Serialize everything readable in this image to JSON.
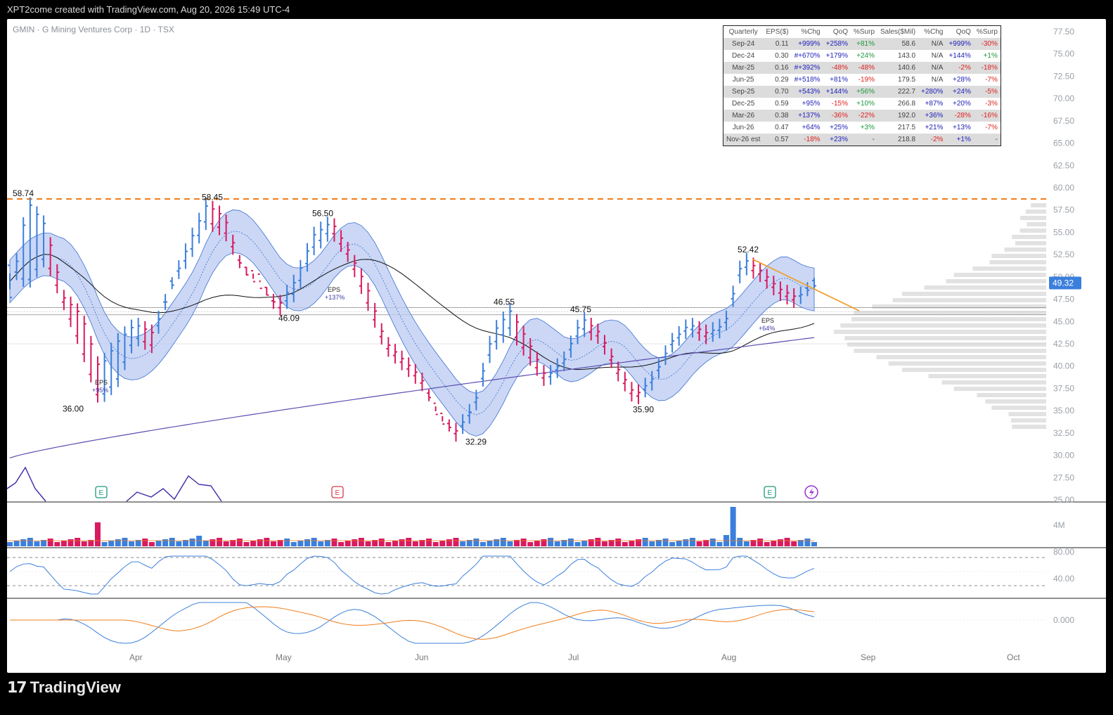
{
  "header": {
    "attribution": "XPT2come created with TradingView.com, Aug 20, 2026 15:49 UTC-4"
  },
  "symbol": {
    "line": "GMIN · G Mining Ventures Corp · 1D · TSX"
  },
  "footer": {
    "brand": "TradingView"
  },
  "eps_table": {
    "headers": [
      "Quarterly",
      "EPS($)",
      "%Chg",
      "QoQ",
      "%Surp",
      "Sales($Mil)",
      "%Chg",
      "QoQ",
      "%Surp"
    ],
    "rows": [
      [
        "Sep-24",
        "0.11",
        "+999%",
        "+258%",
        "+81%",
        "58.6",
        "N/A",
        "+999%",
        "-30%"
      ],
      [
        "Dec-24",
        "0.30",
        "#+670%",
        "+179%",
        "+24%",
        "143.0",
        "N/A",
        "+144%",
        "+1%"
      ],
      [
        "Mar-25",
        "0.16",
        "#+392%",
        "-48%",
        "-48%",
        "140.6",
        "N/A",
        "-2%",
        "-18%"
      ],
      [
        "Jun-25",
        "0.29",
        "#+518%",
        "+81%",
        "-19%",
        "179.5",
        "N/A",
        "+28%",
        "-7%"
      ],
      [
        "Sep-25",
        "0.70",
        "+543%",
        "+144%",
        "+56%",
        "222.7",
        "+280%",
        "+24%",
        "-5%"
      ],
      [
        "Dec-25",
        "0.59",
        "+95%",
        "-15%",
        "+10%",
        "266.8",
        "+87%",
        "+20%",
        "-3%"
      ],
      [
        "Mar-26",
        "0.38",
        "+137%",
        "-36%",
        "-22%",
        "192.0",
        "+36%",
        "-28%",
        "-16%"
      ],
      [
        "Jun-26",
        "0.47",
        "+64%",
        "+25%",
        "+3%",
        "217.5",
        "+21%",
        "+13%",
        "-7%"
      ],
      [
        "Nov-26 est",
        "0.57",
        "-18%",
        "+23%",
        "-",
        "218.8",
        "-2%",
        "+1%",
        "-"
      ]
    ]
  },
  "colors": {
    "up": "#3b7fdc",
    "down": "#d81b60",
    "band_fill": "#b9c9f2",
    "ma50": "#111111",
    "ma200": "#5a4fb0",
    "resistance": "#f07e1b",
    "trendline": "#f0a030",
    "last_price_bg": "#3b7fdc",
    "earnings_green": "#1a9a7a",
    "earnings_red": "#d63a4a"
  },
  "chart_data": {
    "type": "ohlc",
    "title": "GMIN · G Mining Ventures Corp · 1D · TSX",
    "price_axis": {
      "ticks": [
        "77.50",
        "75.00",
        "72.50",
        "70.00",
        "67.50",
        "65.00",
        "62.50",
        "60.00",
        "57.50",
        "55.00",
        "52.50",
        "50.00",
        "47.50",
        "45.00",
        "42.50",
        "40.00",
        "37.50",
        "35.00",
        "32.50",
        "30.00",
        "27.50",
        "25.00"
      ],
      "range": [
        25,
        77.5
      ],
      "last_price": "49.32"
    },
    "time_axis": {
      "labels": [
        "Apr",
        "May",
        "Jun",
        "Jul",
        "Aug",
        "Sep",
        "Oct"
      ]
    },
    "annotations": [
      "58.74",
      "58.45",
      "56.50",
      "46.09",
      "36.00",
      "32.29",
      "46.55",
      "45.75",
      "35.90",
      "52.42"
    ],
    "eps_markers": [
      {
        "label": "EPS",
        "value": "+95%"
      },
      {
        "label": "EPS",
        "value": "+137%"
      },
      {
        "label": "EPS",
        "value": "+64%"
      }
    ],
    "earnings_icons": [
      "E",
      "E",
      "E"
    ],
    "resistance_level": 58.74,
    "close_path": [
      [
        51,
        48
      ],
      [
        49,
        58.7
      ],
      [
        52,
        56
      ],
      [
        47,
        48
      ],
      [
        42,
        46
      ],
      [
        36,
        40
      ],
      [
        38,
        43
      ],
      [
        43,
        45
      ],
      [
        42,
        44
      ],
      [
        49,
        49
      ],
      [
        52,
        54
      ],
      [
        56,
        58.4
      ],
      [
        55,
        57
      ],
      [
        51,
        51
      ],
      [
        50,
        49
      ],
      [
        46,
        47
      ],
      [
        48,
        50
      ],
      [
        53,
        55
      ],
      [
        55,
        56.5
      ],
      [
        52,
        53
      ],
      [
        47,
        49
      ],
      [
        42,
        43
      ],
      [
        40,
        41
      ],
      [
        38,
        39
      ],
      [
        35,
        34
      ],
      [
        32,
        33
      ],
      [
        35,
        36
      ],
      [
        42,
        44
      ],
      [
        44,
        46.5
      ],
      [
        41,
        43
      ],
      [
        38,
        39
      ],
      [
        40,
        41
      ],
      [
        44,
        45.7
      ],
      [
        43,
        44
      ],
      [
        39,
        40
      ],
      [
        36,
        37
      ],
      [
        38,
        39
      ],
      [
        42,
        43
      ],
      [
        44,
        45
      ],
      [
        43,
        44
      ],
      [
        44,
        45
      ],
      [
        51,
        52.4
      ],
      [
        50,
        51
      ],
      [
        48,
        49
      ],
      [
        47,
        48
      ],
      [
        49.3,
        49.3
      ]
    ],
    "volume_axis": "4M",
    "rsi_axis": [
      "80.00",
      "40.00"
    ],
    "macd_axis": [
      "0.000"
    ]
  }
}
